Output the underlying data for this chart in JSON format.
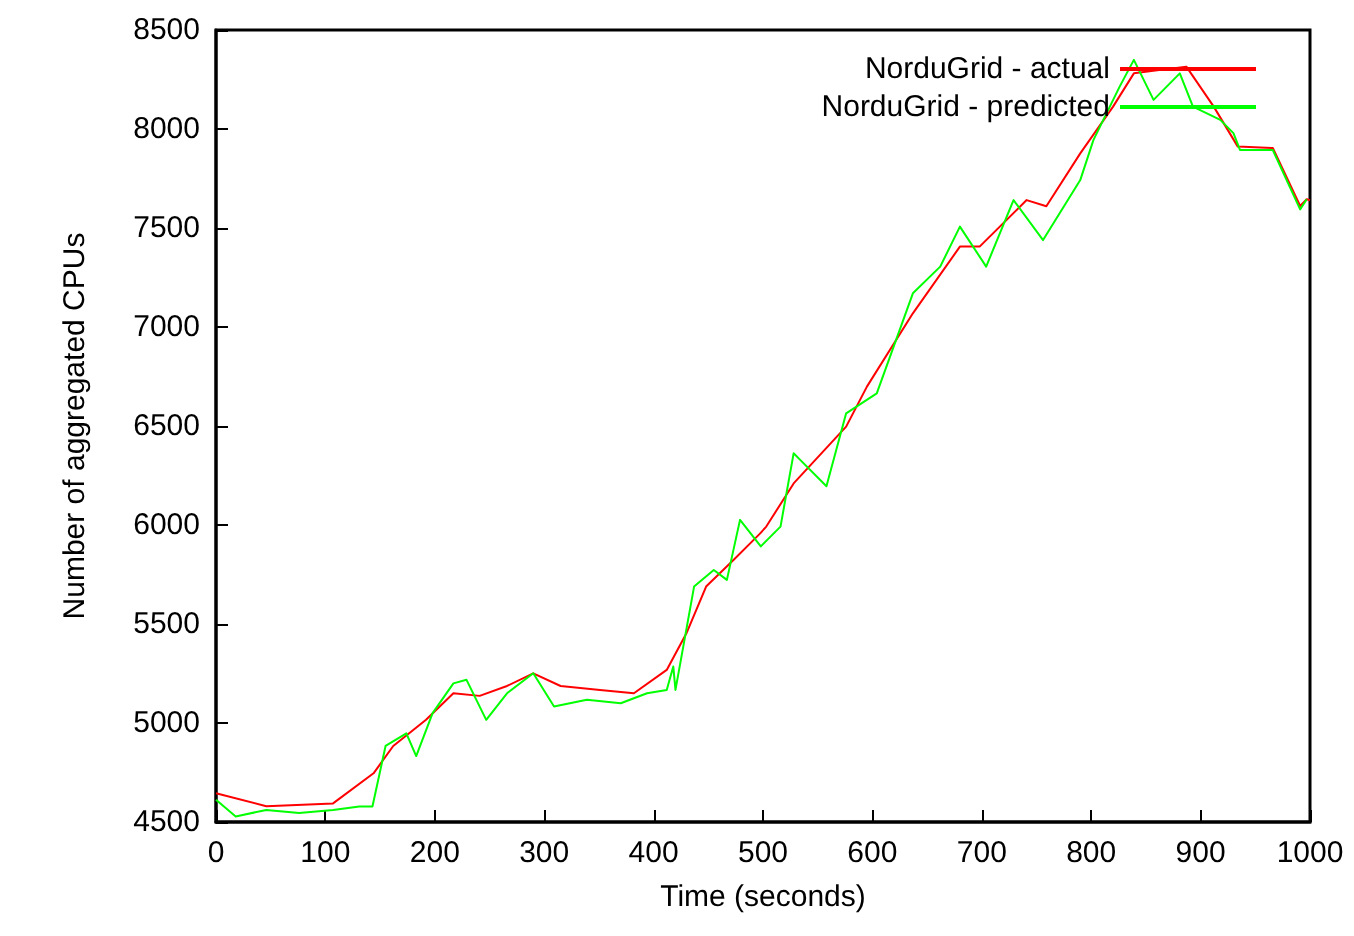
{
  "chart_data": {
    "type": "line",
    "xlabel": "Time (seconds)",
    "ylabel": "Number of aggregated CPUs",
    "xlim": [
      0,
      1000
    ],
    "xticks": [
      0,
      100,
      200,
      300,
      400,
      500,
      600,
      700,
      800,
      900,
      1000
    ],
    "ylim": [
      4500,
      8500
    ],
    "yticks": [
      4500,
      5000,
      5500,
      6000,
      6500,
      7000,
      7500,
      8000,
      8500
    ],
    "grid": false,
    "legend": "top right",
    "marker": "none",
    "line_style": "solid",
    "series": [
      {
        "name": "NorduGrid - actual",
        "color": "#ff0000",
        "x": [
          0,
          46,
          107,
          144,
          162,
          192,
          217,
          241,
          266,
          290,
          315,
          351,
          382,
          412,
          430,
          448,
          473,
          497,
          503,
          528,
          576,
          595,
          637,
          680,
          698,
          741,
          759,
          790,
          820,
          839,
          887,
          912,
          934,
          966,
          991,
          997,
          1000
        ],
        "values": [
          4645,
          4580,
          4594,
          4746,
          4884,
          5016,
          5150,
          5137,
          5187,
          5251,
          5187,
          5167,
          5150,
          5268,
          5453,
          5689,
          5823,
          5955,
          5992,
          6210,
          6497,
          6699,
          7069,
          7406,
          7406,
          7641,
          7610,
          7877,
          8113,
          8281,
          8315,
          8113,
          7911,
          7904,
          7611,
          7645,
          7640
        ]
      },
      {
        "name": "NorduGrid - predicted",
        "color": "#00ff00",
        "x": [
          0,
          18,
          46,
          76,
          107,
          131,
          143,
          155,
          174,
          183,
          198,
          217,
          229,
          247,
          266,
          290,
          309,
          339,
          370,
          394,
          412,
          418,
          420,
          437,
          455,
          467,
          479,
          498,
          516,
          528,
          534,
          558,
          576,
          604,
          637,
          662,
          680,
          704,
          729,
          756,
          790,
          802,
          826,
          839,
          857,
          881,
          893,
          918,
          930,
          936,
          966,
          991,
          997
        ],
        "values": [
          4612,
          4528,
          4561,
          4545,
          4561,
          4578,
          4578,
          4884,
          4948,
          4833,
          5050,
          5200,
          5218,
          5016,
          5150,
          5251,
          5083,
          5117,
          5100,
          5150,
          5167,
          5285,
          5167,
          5689,
          5773,
          5723,
          6026,
          5892,
          5992,
          6362,
          6329,
          6196,
          6564,
          6665,
          7170,
          7305,
          7507,
          7305,
          7641,
          7439,
          7742,
          7944,
          8214,
          8349,
          8147,
          8281,
          8113,
          8046,
          7979,
          7894,
          7894,
          7594,
          7645
        ]
      }
    ]
  }
}
